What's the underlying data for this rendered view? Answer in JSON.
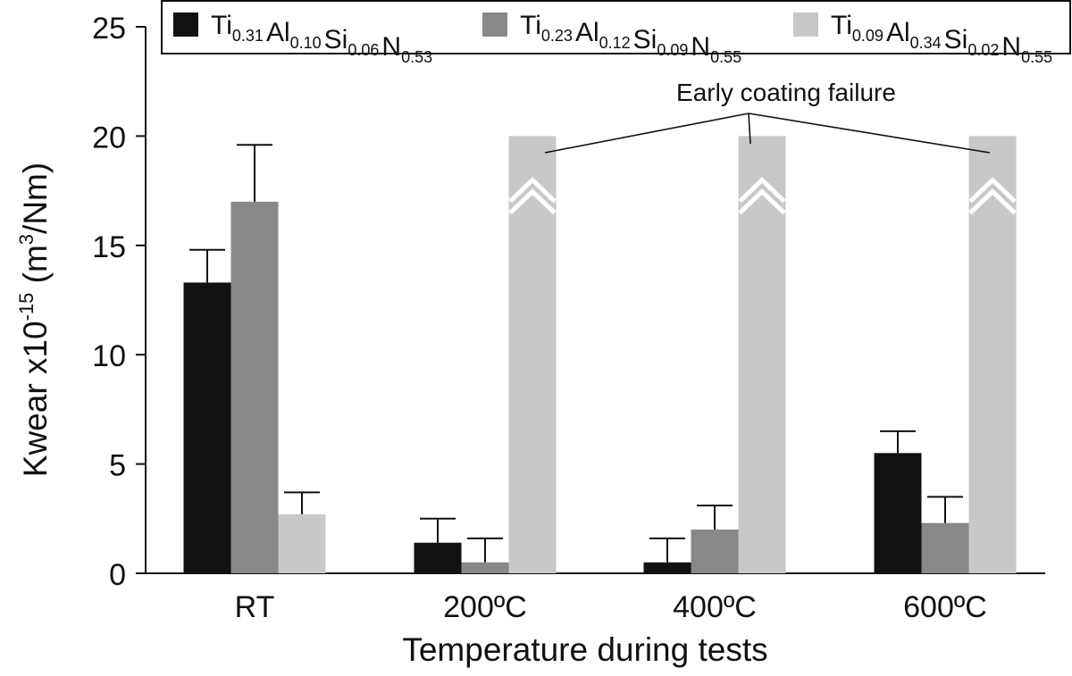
{
  "chart_data": {
    "type": "bar",
    "xlabel": "Temperature during tests",
    "ylabel": {
      "base": "Kwear x10",
      "exp": "-15",
      "unit_pre": " (m",
      "unit_exp": "3",
      "unit_post": "/Nm)"
    },
    "ylim": [
      0,
      25
    ],
    "yticks": [
      "0",
      "5",
      "10",
      "15",
      "20",
      "25"
    ],
    "categories": [
      "RT",
      "200ºC",
      "400ºC",
      "600ºC"
    ],
    "series": [
      {
        "name": "Ti0.31Al0.10Si0.06N0.53",
        "name_parts": [
          [
            "Ti",
            "0.31"
          ],
          [
            "Al",
            "0.10"
          ],
          [
            "Si",
            "0.06"
          ],
          [
            "N",
            "0.53"
          ]
        ],
        "color": "#111111",
        "values": [
          13.3,
          1.4,
          0.5,
          5.5
        ],
        "errors": [
          1.5,
          1.1,
          1.1,
          1.0
        ]
      },
      {
        "name": "Ti0.23Al0.12Si0.09N0.55",
        "name_parts": [
          [
            "Ti",
            "0.23"
          ],
          [
            "Al",
            "0.12"
          ],
          [
            "Si",
            "0.09"
          ],
          [
            "N",
            "0.55"
          ]
        ],
        "color": "#888888",
        "values": [
          17.0,
          0.5,
          2.0,
          2.3
        ],
        "errors": [
          2.6,
          1.1,
          1.1,
          1.2
        ]
      },
      {
        "name": "Ti0.09Al0.34Si0.02N0.55",
        "name_parts": [
          [
            "Ti",
            "0.09"
          ],
          [
            "Al",
            "0.34"
          ],
          [
            "Si",
            "0.02"
          ],
          [
            "N",
            "0.55"
          ]
        ],
        "color": "#c8c8c8",
        "values": [
          2.7,
          20,
          20,
          20
        ],
        "errors": [
          1.0,
          null,
          null,
          null
        ],
        "truncated": [
          false,
          true,
          true,
          true
        ]
      }
    ],
    "annotation": "Early coating failure",
    "legend": "top",
    "grid": false
  }
}
